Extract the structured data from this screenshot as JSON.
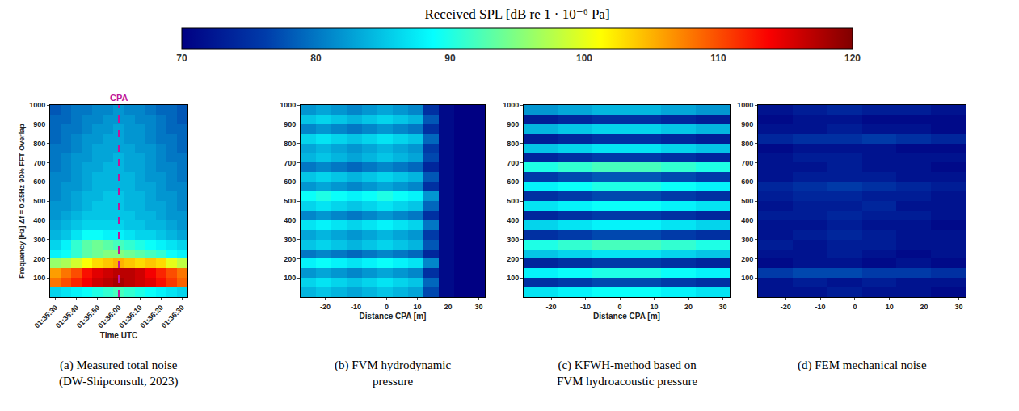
{
  "colorbar": {
    "title": "Received SPL [dB re 1 · 10⁻⁶ Pa]",
    "range": [
      70,
      120
    ],
    "ticks": [
      70,
      80,
      90,
      100,
      110,
      120
    ]
  },
  "chart_data": [
    {
      "type": "heatmap",
      "title": "(a) Measured total noise (DW-Shipconsult, 2023)",
      "xlabel": "Time UTC",
      "ylabel": "Frequency [Hz] Δf = 0.25Hz 90% FFT Overlap",
      "grid": false,
      "categories": [
        "01:35:30",
        null,
        "01:35:40",
        null,
        "01:35:50",
        null,
        "01:36:00",
        null,
        "01:36:10",
        null,
        "01:36:20",
        null,
        "01:36:30"
      ],
      "cpa": {
        "label": "CPA",
        "category": "01:36:00"
      },
      "ylim": [
        0,
        1000
      ],
      "yticks": [
        100,
        200,
        300,
        400,
        500,
        600,
        700,
        800,
        900,
        1000
      ],
      "y": [
        25,
        75,
        125,
        175,
        225,
        275,
        325,
        375,
        425,
        475,
        525,
        575,
        625,
        675,
        725,
        775,
        825,
        875,
        925,
        975
      ],
      "z": [
        [
          86,
          87,
          88,
          89,
          90,
          91,
          92,
          91,
          90,
          89,
          88,
          87,
          86
        ],
        [
          108,
          110,
          112,
          114,
          116,
          117,
          118,
          117,
          116,
          115,
          113,
          111,
          109
        ],
        [
          106,
          108,
          110,
          113,
          115,
          116,
          117,
          117,
          116,
          114,
          112,
          110,
          108
        ],
        [
          96,
          97,
          99,
          101,
          103,
          104,
          105,
          104,
          103,
          104,
          103,
          100,
          98
        ],
        [
          88,
          89,
          91,
          93,
          94,
          95,
          95,
          94,
          93,
          92,
          91,
          89,
          88
        ],
        [
          86,
          88,
          91,
          93,
          94,
          93,
          92,
          91,
          90,
          89,
          88,
          87,
          86
        ],
        [
          84,
          85,
          87,
          89,
          89,
          88,
          88,
          87,
          86,
          86,
          85,
          84,
          83
        ],
        [
          83,
          84,
          85,
          86,
          86,
          86,
          86,
          85,
          85,
          84,
          84,
          83,
          82
        ],
        [
          82,
          83,
          84,
          85,
          85,
          85,
          85,
          85,
          84,
          84,
          83,
          82,
          82
        ],
        [
          82,
          82,
          83,
          84,
          85,
          85,
          85,
          84,
          84,
          83,
          83,
          82,
          81
        ],
        [
          81,
          82,
          83,
          84,
          84,
          85,
          85,
          84,
          84,
          83,
          82,
          82,
          81
        ],
        [
          81,
          82,
          82,
          83,
          84,
          84,
          84,
          84,
          83,
          83,
          82,
          81,
          81
        ],
        [
          81,
          81,
          82,
          83,
          84,
          84,
          84,
          84,
          83,
          82,
          82,
          81,
          80
        ],
        [
          80,
          81,
          82,
          83,
          83,
          84,
          84,
          83,
          83,
          82,
          81,
          81,
          80
        ],
        [
          80,
          81,
          82,
          82,
          83,
          83,
          84,
          83,
          83,
          82,
          81,
          80,
          80
        ],
        [
          80,
          80,
          81,
          82,
          83,
          83,
          83,
          83,
          82,
          82,
          81,
          80,
          79
        ],
        [
          79,
          80,
          81,
          82,
          82,
          83,
          83,
          82,
          82,
          81,
          80,
          80,
          79
        ],
        [
          79,
          80,
          80,
          81,
          82,
          82,
          83,
          82,
          82,
          81,
          80,
          79,
          79
        ],
        [
          79,
          79,
          80,
          81,
          81,
          82,
          82,
          82,
          81,
          81,
          80,
          79,
          78
        ],
        [
          78,
          79,
          80,
          80,
          81,
          81,
          82,
          81,
          81,
          80,
          79,
          79,
          78
        ]
      ]
    },
    {
      "type": "heatmap",
      "title": "(b) FVM hydrodynamic pressure",
      "xlabel": "Distance CPA [m]",
      "grid": false,
      "x": [
        -25.5,
        -20.5,
        -15.5,
        -10.5,
        -5.5,
        -0.5,
        4.5,
        9.5,
        14.5,
        19.5,
        24.5,
        29.5
      ],
      "xlim": [
        -28,
        32
      ],
      "xticks": [
        -20,
        -10,
        0,
        10,
        20,
        30
      ],
      "ylim": [
        0,
        1000
      ],
      "yticks": [
        100,
        200,
        300,
        400,
        500,
        600,
        700,
        800,
        900,
        1000
      ],
      "y": [
        25,
        75,
        125,
        175,
        225,
        275,
        325,
        375,
        425,
        475,
        525,
        575,
        625,
        675,
        725,
        775,
        825,
        875,
        925,
        975
      ],
      "z": [
        [
          84,
          85,
          84,
          83,
          84,
          85,
          84,
          83,
          77,
          71,
          70,
          70
        ],
        [
          86,
          87,
          86,
          85,
          86,
          87,
          86,
          85,
          79,
          71,
          70,
          70
        ],
        [
          82,
          83,
          82,
          81,
          82,
          83,
          82,
          81,
          75,
          71,
          70,
          70
        ],
        [
          88,
          89,
          88,
          87,
          88,
          89,
          88,
          87,
          81,
          71,
          70,
          70
        ],
        [
          80,
          81,
          80,
          79,
          80,
          81,
          80,
          79,
          74,
          71,
          70,
          70
        ],
        [
          85,
          86,
          85,
          84,
          85,
          86,
          85,
          84,
          78,
          71,
          70,
          70
        ],
        [
          83,
          84,
          83,
          82,
          83,
          84,
          83,
          82,
          76,
          71,
          70,
          70
        ],
        [
          87,
          88,
          87,
          86,
          87,
          88,
          87,
          86,
          80,
          71,
          70,
          70
        ],
        [
          81,
          82,
          81,
          80,
          81,
          82,
          81,
          80,
          75,
          71,
          70,
          70
        ],
        [
          86,
          87,
          86,
          85,
          86,
          87,
          86,
          85,
          79,
          71,
          70,
          70
        ],
        [
          89,
          90,
          89,
          88,
          89,
          90,
          89,
          88,
          82,
          71,
          70,
          70
        ],
        [
          82,
          83,
          82,
          81,
          82,
          83,
          82,
          81,
          75,
          71,
          70,
          70
        ],
        [
          85,
          86,
          85,
          84,
          85,
          86,
          85,
          84,
          78,
          71,
          70,
          70
        ],
        [
          80,
          81,
          80,
          79,
          80,
          81,
          80,
          79,
          74,
          71,
          70,
          70
        ],
        [
          84,
          85,
          84,
          83,
          84,
          85,
          84,
          83,
          77,
          71,
          70,
          70
        ],
        [
          83,
          84,
          83,
          82,
          83,
          84,
          83,
          82,
          76,
          71,
          70,
          70
        ],
        [
          86,
          87,
          86,
          85,
          86,
          87,
          86,
          85,
          79,
          71,
          70,
          70
        ],
        [
          81,
          82,
          81,
          80,
          81,
          82,
          81,
          80,
          75,
          71,
          70,
          70
        ],
        [
          85,
          86,
          85,
          84,
          85,
          86,
          85,
          84,
          78,
          71,
          70,
          70
        ],
        [
          82,
          83,
          82,
          81,
          82,
          83,
          82,
          81,
          75,
          71,
          70,
          70
        ]
      ]
    },
    {
      "type": "heatmap",
      "title": "(c) KFWH-method based on FVM hydroacoustic pressure",
      "xlabel": "Distance CPA [m]",
      "grid": false,
      "x": [
        -23,
        -13,
        -3,
        7,
        17,
        27
      ],
      "xlim": [
        -28,
        32
      ],
      "xticks": [
        -20,
        -10,
        0,
        10,
        20,
        30
      ],
      "ylim": [
        0,
        1000
      ],
      "yticks": [
        100,
        200,
        300,
        400,
        500,
        600,
        700,
        800,
        900,
        1000
      ],
      "y": [
        25,
        75,
        125,
        175,
        225,
        275,
        325,
        375,
        425,
        475,
        525,
        575,
        625,
        675,
        725,
        775,
        825,
        875,
        925,
        975
      ],
      "z": [
        [
          87,
          88,
          89,
          89,
          88,
          87
        ],
        [
          75,
          76,
          77,
          77,
          76,
          75
        ],
        [
          88,
          89,
          90,
          90,
          89,
          88
        ],
        [
          74,
          75,
          76,
          76,
          75,
          74
        ],
        [
          85,
          86,
          87,
          87,
          86,
          85
        ],
        [
          90,
          91,
          92,
          92,
          91,
          90
        ],
        [
          75,
          76,
          77,
          77,
          76,
          75
        ],
        [
          86,
          87,
          88,
          88,
          87,
          86
        ],
        [
          74,
          75,
          76,
          76,
          75,
          74
        ],
        [
          87,
          88,
          89,
          89,
          88,
          87
        ],
        [
          75,
          76,
          77,
          77,
          76,
          75
        ],
        [
          88,
          89,
          90,
          90,
          89,
          88
        ],
        [
          76,
          77,
          78,
          78,
          77,
          76
        ],
        [
          90,
          91,
          92,
          92,
          91,
          90
        ],
        [
          74,
          75,
          76,
          76,
          75,
          74
        ],
        [
          85,
          86,
          87,
          87,
          86,
          85
        ],
        [
          73,
          74,
          75,
          75,
          74,
          73
        ],
        [
          84,
          85,
          86,
          86,
          85,
          84
        ],
        [
          73,
          74,
          75,
          75,
          74,
          73
        ],
        [
          82,
          83,
          84,
          84,
          83,
          82
        ]
      ]
    },
    {
      "type": "heatmap",
      "title": "(d) FEM mechanical noise",
      "grid": false,
      "x": [
        -23,
        -13,
        -3,
        7,
        17,
        27
      ],
      "xlim": [
        -28,
        32
      ],
      "xticks": [
        -20,
        -10,
        0,
        10,
        20,
        30
      ],
      "ylim": [
        0,
        1000
      ],
      "yticks": [
        100,
        200,
        300,
        400,
        500,
        600,
        700,
        800,
        900,
        1000
      ],
      "y": [
        25,
        75,
        125,
        175,
        225,
        275,
        325,
        375,
        425,
        475,
        525,
        575,
        625,
        675,
        725,
        775,
        825,
        875,
        925,
        975
      ],
      "z": [
        [
          72,
          72,
          73,
          72,
          72,
          71
        ],
        [
          72,
          73,
          72,
          73,
          72,
          72
        ],
        [
          76,
          77,
          77,
          76,
          76,
          75
        ],
        [
          71,
          72,
          72,
          71,
          72,
          71
        ],
        [
          72,
          72,
          73,
          72,
          71,
          72
        ],
        [
          73,
          72,
          73,
          73,
          72,
          72
        ],
        [
          72,
          73,
          74,
          73,
          72,
          72
        ],
        [
          72,
          72,
          73,
          72,
          72,
          71
        ],
        [
          73,
          73,
          74,
          73,
          73,
          72
        ],
        [
          72,
          73,
          73,
          74,
          72,
          72
        ],
        [
          73,
          74,
          74,
          73,
          73,
          72
        ],
        [
          74,
          75,
          76,
          75,
          74,
          73
        ],
        [
          72,
          73,
          73,
          73,
          72,
          72
        ],
        [
          72,
          72,
          73,
          72,
          72,
          71
        ],
        [
          72,
          73,
          73,
          72,
          72,
          72
        ],
        [
          71,
          72,
          72,
          72,
          71,
          71
        ],
        [
          74,
          75,
          75,
          76,
          75,
          74
        ],
        [
          72,
          72,
          73,
          72,
          72,
          71
        ],
        [
          71,
          72,
          72,
          71,
          71,
          71
        ],
        [
          72,
          73,
          74,
          73,
          73,
          72
        ]
      ]
    }
  ]
}
